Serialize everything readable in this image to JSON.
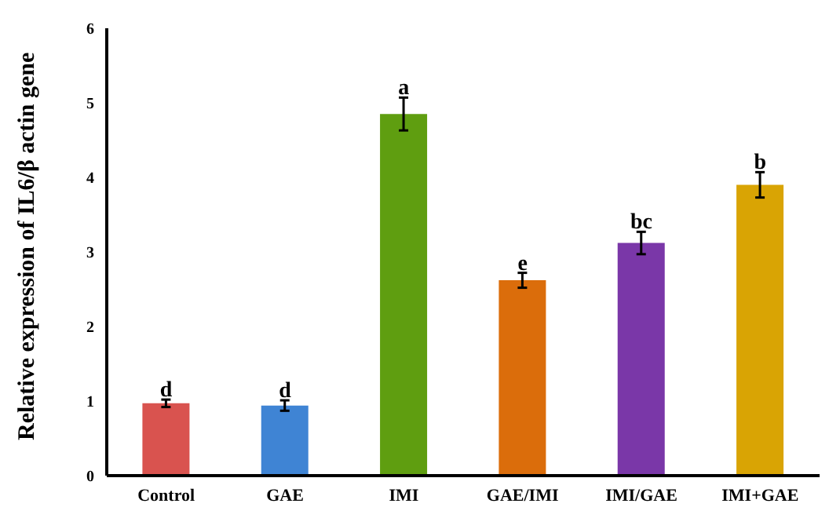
{
  "chart_data": {
    "type": "bar",
    "ylabel": "Relative expression of IL6/β actin gene",
    "categories": [
      "Control",
      "GAE",
      "IMI",
      "GAE/IMI",
      "IMI/GAE",
      "IMI+GAE"
    ],
    "values": [
      0.97,
      0.94,
      4.85,
      2.62,
      3.12,
      3.9
    ],
    "errors": [
      0.05,
      0.07,
      0.22,
      0.1,
      0.15,
      0.17
    ],
    "colors": [
      "#d9534f",
      "#3f84d4",
      "#5f9e10",
      "#db6d0b",
      "#7a37a8",
      "#d9a404"
    ],
    "ylim": [
      0,
      6
    ],
    "yticks": [
      0,
      1,
      2,
      3,
      4,
      5,
      6
    ],
    "grid": false,
    "legend": false,
    "annotations": [
      {
        "text": "d",
        "x": "Control",
        "y": 1.02
      },
      {
        "text": "d",
        "x": "GAE",
        "y": 1.01
      },
      {
        "text": "a",
        "x": "IMI",
        "y": 5.07
      },
      {
        "text": "e",
        "x": "GAE/IMI",
        "y": 2.72
      },
      {
        "text": "bc",
        "x": "IMI/GAE",
        "y": 3.27
      },
      {
        "text": "b",
        "x": "IMI+GAE",
        "y": 4.07
      }
    ]
  }
}
